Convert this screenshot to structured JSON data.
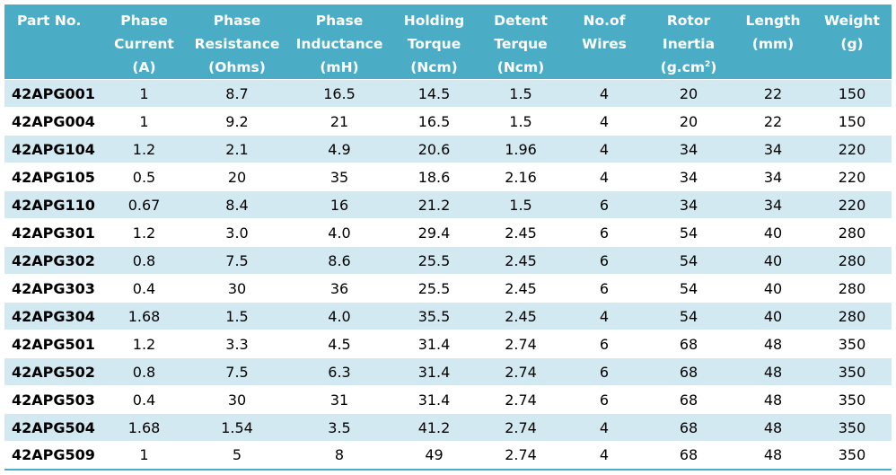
{
  "table": {
    "headers": [
      [
        "Part No."
      ],
      [
        "Phase",
        "Current",
        "(A)"
      ],
      [
        "Phase",
        "Resistance",
        "(Ohms)"
      ],
      [
        "Phase",
        "Inductance",
        "(mH)"
      ],
      [
        "Holding",
        "Torque",
        "(Ncm)"
      ],
      [
        "Detent",
        "Terque",
        "(Ncm)"
      ],
      [
        "No.of",
        "Wires"
      ],
      [
        "Rotor",
        "Inertia",
        "(g.cm",
        "2",
        ")"
      ],
      [
        "Length",
        "(mm)"
      ],
      [
        "Weight",
        "(g)"
      ]
    ],
    "rows": [
      [
        "42APG001",
        "1",
        "8.7",
        "16.5",
        "14.5",
        "1.5",
        "4",
        "20",
        "22",
        "150"
      ],
      [
        "42APG004",
        "1",
        "9.2",
        "21",
        "16.5",
        "1.5",
        "4",
        "20",
        "22",
        "150"
      ],
      [
        "42APG104",
        "1.2",
        "2.1",
        "4.9",
        "20.6",
        "1.96",
        "4",
        "34",
        "34",
        "220"
      ],
      [
        "42APG105",
        "0.5",
        "20",
        "35",
        "18.6",
        "2.16",
        "4",
        "34",
        "34",
        "220"
      ],
      [
        "42APG110",
        "0.67",
        "8.4",
        "16",
        "21.2",
        "1.5",
        "6",
        "34",
        "34",
        "220"
      ],
      [
        "42APG301",
        "1.2",
        "3.0",
        "4.0",
        "29.4",
        "2.45",
        "6",
        "54",
        "40",
        "280"
      ],
      [
        "42APG302",
        "0.8",
        "7.5",
        "8.6",
        "25.5",
        "2.45",
        "6",
        "54",
        "40",
        "280"
      ],
      [
        "42APG303",
        "0.4",
        "30",
        "36",
        "25.5",
        "2.45",
        "6",
        "54",
        "40",
        "280"
      ],
      [
        "42APG304",
        "1.68",
        "1.5",
        "4.0",
        "35.5",
        "2.45",
        "4",
        "54",
        "40",
        "280"
      ],
      [
        "42APG501",
        "1.2",
        "3.3",
        "4.5",
        "31.4",
        "2.74",
        "6",
        "68",
        "48",
        "350"
      ],
      [
        "42APG502",
        "0.8",
        "7.5",
        "6.3",
        "31.4",
        "2.74",
        "6",
        "68",
        "48",
        "350"
      ],
      [
        "42APG503",
        "0.4",
        "30",
        "31",
        "31.4",
        "2.74",
        "6",
        "68",
        "48",
        "350"
      ],
      [
        "42APG504",
        "1.68",
        "1.54",
        "3.5",
        "41.2",
        "2.74",
        "4",
        "68",
        "48",
        "350"
      ],
      [
        "42APG509",
        "1",
        "5",
        "8",
        "49",
        "2.74",
        "4",
        "68",
        "48",
        "350"
      ]
    ]
  },
  "colors": {
    "header_bg": "#4bacc6",
    "header_text": "#ffffff",
    "band_row": "#d3e9f1",
    "plain_row": "#ffffff"
  }
}
